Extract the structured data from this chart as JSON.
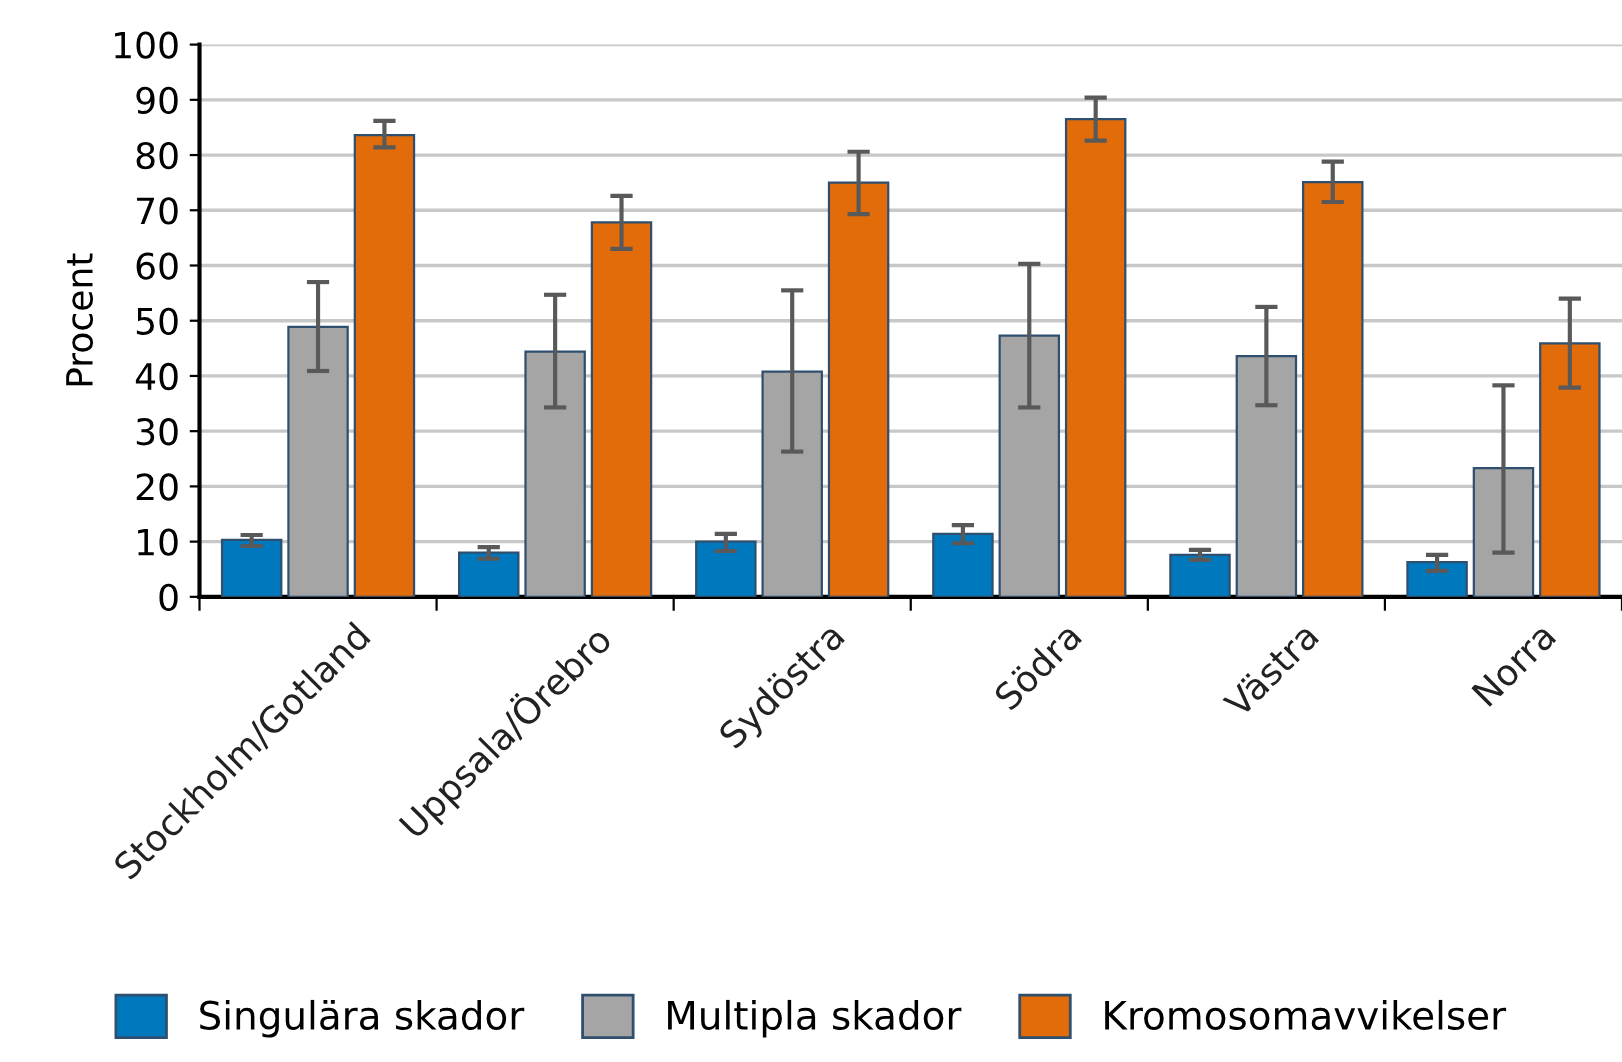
{
  "chart_data": {
    "type": "bar",
    "ylabel": "Procent",
    "categories": [
      "Stockholm/Gotland",
      "Uppsala/Örebro",
      "Sydöstra",
      "Södra",
      "Västra",
      "Norra"
    ],
    "series": [
      {
        "name": "Singulära skador",
        "color": "#0078be",
        "values": [
          10.3,
          8.0,
          10.0,
          11.4,
          7.6,
          6.3
        ],
        "errors": [
          [
            9.2,
            11.2
          ],
          [
            6.9,
            9.0
          ],
          [
            8.3,
            11.4
          ],
          [
            9.7,
            13.0
          ],
          [
            6.7,
            8.5
          ],
          [
            4.7,
            7.6
          ]
        ]
      },
      {
        "name": "Multipla skador",
        "color": "#a5a5a5",
        "values": [
          48.9,
          44.4,
          40.8,
          47.3,
          43.6,
          23.3
        ],
        "errors": [
          [
            40.9,
            57.0
          ],
          [
            34.3,
            54.7
          ],
          [
            26.3,
            55.5
          ],
          [
            34.3,
            60.3
          ],
          [
            34.7,
            52.5
          ],
          [
            8.0,
            38.3
          ]
        ]
      },
      {
        "name": "Kromosomavvikelser",
        "color": "#e36c0a",
        "values": [
          83.6,
          67.8,
          75.0,
          86.5,
          75.1,
          45.9
        ],
        "errors": [
          [
            81.4,
            86.2
          ],
          [
            63.0,
            72.6
          ],
          [
            69.3,
            80.6
          ],
          [
            82.6,
            90.4
          ],
          [
            71.5,
            78.8
          ],
          [
            37.9,
            54.0
          ]
        ]
      }
    ],
    "ylim": [
      0,
      100
    ],
    "yticks": [
      0,
      10,
      20,
      30,
      40,
      50,
      60,
      70,
      80,
      90,
      100
    ],
    "grid": "y",
    "legend": "bottom"
  }
}
